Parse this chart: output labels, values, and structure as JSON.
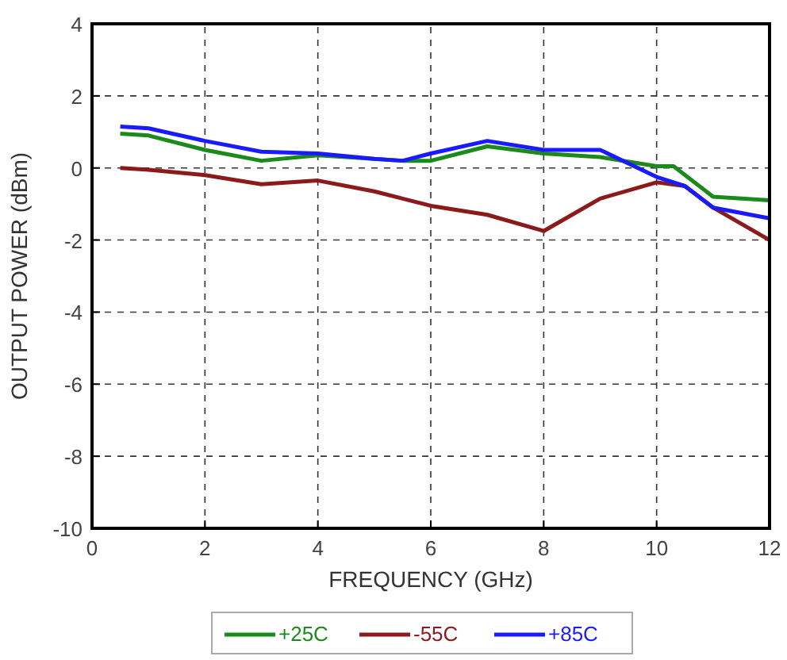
{
  "chart_data": {
    "type": "line",
    "xlabel": "FREQUENCY (GHz)",
    "ylabel": "OUTPUT POWER (dBm)",
    "xlim": [
      0,
      12
    ],
    "xticks": [
      0,
      2,
      4,
      6,
      8,
      10,
      12
    ],
    "ylim": [
      -10,
      4
    ],
    "yticks": [
      -10,
      -8,
      -6,
      -4,
      -2,
      0,
      2,
      4
    ],
    "grid": true,
    "legend": "bottom",
    "marker": "none",
    "line_style": "solid",
    "series": [
      {
        "name": "+25C",
        "color": "#1a8a1a",
        "x": [
          0.5,
          1,
          2,
          3,
          4,
          5.5,
          6,
          7,
          8,
          9,
          10,
          10.3,
          11,
          12
        ],
        "values": [
          0.95,
          0.9,
          0.5,
          0.2,
          0.35,
          0.2,
          0.2,
          0.6,
          0.4,
          0.3,
          0.05,
          0.05,
          -0.8,
          -0.9
        ]
      },
      {
        "name": "-55C",
        "color": "#8b1a1a",
        "x": [
          0.5,
          1,
          2,
          3,
          4,
          5,
          6,
          7,
          8,
          9,
          10,
          10.5,
          11,
          12
        ],
        "values": [
          0,
          -0.05,
          -0.2,
          -0.45,
          -0.35,
          -0.65,
          -1.05,
          -1.3,
          -1.75,
          -0.85,
          -0.4,
          -0.5,
          -1.1,
          -2
        ]
      },
      {
        "name": "+85C",
        "color": "#1a1aff",
        "x": [
          0.5,
          1,
          2,
          3,
          4,
          5,
          5.5,
          6,
          7,
          8,
          9,
          10,
          10.5,
          11,
          12
        ],
        "values": [
          1.15,
          1.1,
          0.75,
          0.45,
          0.4,
          0.25,
          0.2,
          0.4,
          0.75,
          0.5,
          0.5,
          -0.25,
          -0.5,
          -1.1,
          -1.4
        ]
      }
    ]
  }
}
